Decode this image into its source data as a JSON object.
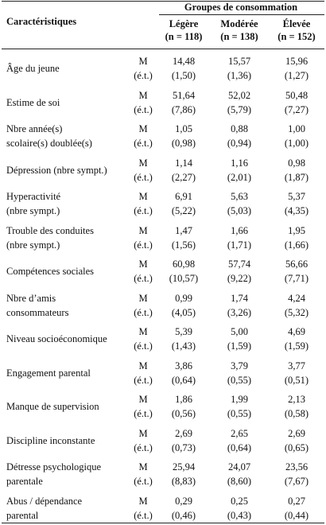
{
  "header": {
    "row_label": "Caractéristiques",
    "group_title": "Groupes de consommation",
    "columns": [
      {
        "name": "Légère",
        "n": "(n = 118)"
      },
      {
        "name": "Modérée",
        "n": "(n = 138)"
      },
      {
        "name": "Élevée",
        "n": "(n = 152)"
      }
    ]
  },
  "table": {
    "rows": [
      {
        "label": [
          "Âge du jeune"
        ],
        "stats": [
          "M",
          "(é.t.)"
        ],
        "mean": [
          "14,48",
          "15,57",
          "15,96"
        ],
        "sd": [
          "(1,50)",
          "(1,36)",
          "(1,27)"
        ]
      },
      {
        "label": [
          "Estime de soi"
        ],
        "stats": [
          "M",
          "(é.t.)"
        ],
        "mean": [
          "51,64",
          "52,02",
          "50,48"
        ],
        "sd": [
          "(7,86)",
          "(5,79)",
          "(7,27)"
        ]
      },
      {
        "label": [
          "Nbre année(s)",
          "scolaire(s) doublée(s)"
        ],
        "stats": [
          "M",
          "(é.t.)"
        ],
        "mean": [
          "1,05",
          "0,88",
          "1,00"
        ],
        "sd": [
          "(0,98)",
          "(0,94)",
          "(1,00)"
        ]
      },
      {
        "label": [
          "Dépression (nbre sympt.)"
        ],
        "stats": [
          "M",
          "(é.t.)"
        ],
        "mean": [
          "1,14",
          "1,16",
          "0,98"
        ],
        "sd": [
          "(2,27)",
          "(2,01)",
          "(1,87)"
        ]
      },
      {
        "label": [
          "Hyperactivité",
          "(nbre sympt.)"
        ],
        "stats": [
          "M",
          "(é.t.)"
        ],
        "mean": [
          "6,91",
          "5,63",
          "5,37"
        ],
        "sd": [
          "(5,22)",
          "(5,03)",
          "(4,35)"
        ]
      },
      {
        "label": [
          "Trouble des conduites",
          "(nbre sympt.)"
        ],
        "stats": [
          "M",
          "(é.t.)"
        ],
        "mean": [
          "1,47",
          "1,66",
          "1,95"
        ],
        "sd": [
          "(1,56)",
          "(1,71)",
          "(1,66)"
        ]
      },
      {
        "label": [
          "Compétences sociales"
        ],
        "stats": [
          "M",
          "(é.t.)"
        ],
        "mean": [
          "60,98",
          "57,74",
          "56,66"
        ],
        "sd": [
          "(10,57)",
          "(9,22)",
          "(7,71)"
        ]
      },
      {
        "label": [
          "Nbre d’amis",
          "consommateurs"
        ],
        "stats": [
          "M",
          "(é.t.)"
        ],
        "mean": [
          "0,99",
          "1,74",
          "4,24"
        ],
        "sd": [
          "(4,05)",
          "(3,26)",
          "(5,32)"
        ]
      },
      {
        "label": [
          "Niveau socioéconomique"
        ],
        "stats": [
          "M",
          "(é.t.)"
        ],
        "mean": [
          "5,39",
          "5,00",
          "4,69"
        ],
        "sd": [
          "(1,43)",
          "(1,59)",
          "(1,59)"
        ]
      },
      {
        "label": [
          "Engagement parental"
        ],
        "stats": [
          "M",
          "(é.t.)"
        ],
        "mean": [
          "3,86",
          "3,79",
          "3,77"
        ],
        "sd": [
          "(0,64)",
          "(0,55)",
          "(0,51)"
        ]
      },
      {
        "label": [
          "Manque de supervision"
        ],
        "stats": [
          "M",
          "(é.t.)"
        ],
        "mean": [
          "1,86",
          "1,99",
          "2,13"
        ],
        "sd": [
          "(0,56)",
          "(0,55)",
          "(0,58)"
        ]
      },
      {
        "label": [
          "Discipline inconstante"
        ],
        "stats": [
          "M",
          "(é.t.)"
        ],
        "mean": [
          "2,69",
          "2,65",
          "2,69"
        ],
        "sd": [
          "(0,73)",
          "(0,64)",
          "(0,65)"
        ]
      },
      {
        "label": [
          "Détresse psychologique",
          "parentale"
        ],
        "stats": [
          "M",
          "(é.t.)"
        ],
        "mean": [
          "25,94",
          "24,07",
          "23,56"
        ],
        "sd": [
          "(8,83)",
          "(8,60)",
          "(7,67)"
        ]
      },
      {
        "label": [
          "Abus / dépendance",
          "parental"
        ],
        "stats": [
          "M",
          "(é.t.)"
        ],
        "mean": [
          "0,29",
          "0,25",
          "0,27"
        ],
        "sd": [
          "(0,46)",
          "(0,43)",
          "(0,44)"
        ]
      }
    ]
  }
}
